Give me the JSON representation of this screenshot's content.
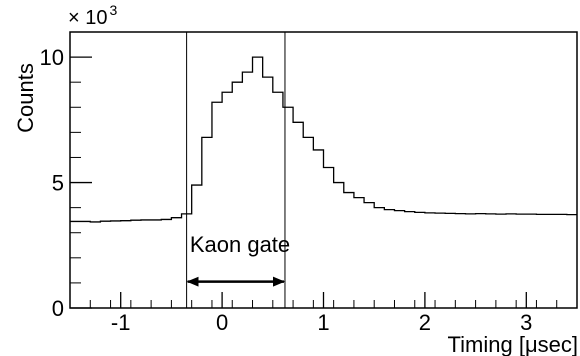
{
  "chart_data": {
    "type": "line",
    "ylabel": "Counts",
    "xlabel": "Timing [μsec]",
    "y_multiplier": {
      "base": "× 10",
      "exponent": "3"
    },
    "xlim": [
      -1.5,
      3.5
    ],
    "ylim": [
      0,
      11000
    ],
    "x_ticks": [
      -1,
      0,
      1,
      2,
      3
    ],
    "x_tick_labels": [
      "-1",
      "0",
      "1",
      "2",
      "3"
    ],
    "y_ticks": [
      0,
      5000,
      10000
    ],
    "y_tick_labels": [
      "0",
      "5",
      "10"
    ],
    "grid": false,
    "bin_width": 0.1,
    "series": [
      {
        "x": [
          -1.5,
          -1.4,
          -1.3,
          -1.2,
          -1.1,
          -1.0,
          -0.9,
          -0.8,
          -0.7,
          -0.6,
          -0.5,
          -0.4,
          -0.3,
          -0.2,
          -0.1,
          0.0,
          0.1,
          0.2,
          0.3,
          0.4,
          0.5,
          0.6,
          0.7,
          0.8,
          0.9,
          1.0,
          1.1,
          1.2,
          1.3,
          1.4,
          1.5,
          1.6,
          1.7,
          1.8,
          1.9,
          2.0,
          2.1,
          2.2,
          2.3,
          2.4,
          2.5,
          2.6,
          2.7,
          2.8,
          2.9,
          3.0,
          3.1,
          3.2,
          3.3,
          3.4
        ],
        "values": [
          3450,
          3450,
          3430,
          3460,
          3470,
          3480,
          3500,
          3510,
          3510,
          3530,
          3600,
          3750,
          4900,
          6800,
          8200,
          8600,
          9000,
          9400,
          10000,
          9200,
          8600,
          8000,
          7400,
          6800,
          6300,
          5600,
          5000,
          4600,
          4400,
          4200,
          4000,
          3920,
          3880,
          3840,
          3810,
          3790,
          3780,
          3770,
          3760,
          3750,
          3760,
          3750,
          3740,
          3750,
          3740,
          3740,
          3730,
          3730,
          3730,
          3720
        ]
      }
    ],
    "annotations": [
      {
        "type": "vline",
        "x": -0.35
      },
      {
        "type": "vline",
        "x": 0.62
      },
      {
        "type": "double-arrow",
        "x_start": -0.35,
        "x_end": 0.62,
        "y": 1050,
        "text": "Kaon gate"
      }
    ]
  }
}
